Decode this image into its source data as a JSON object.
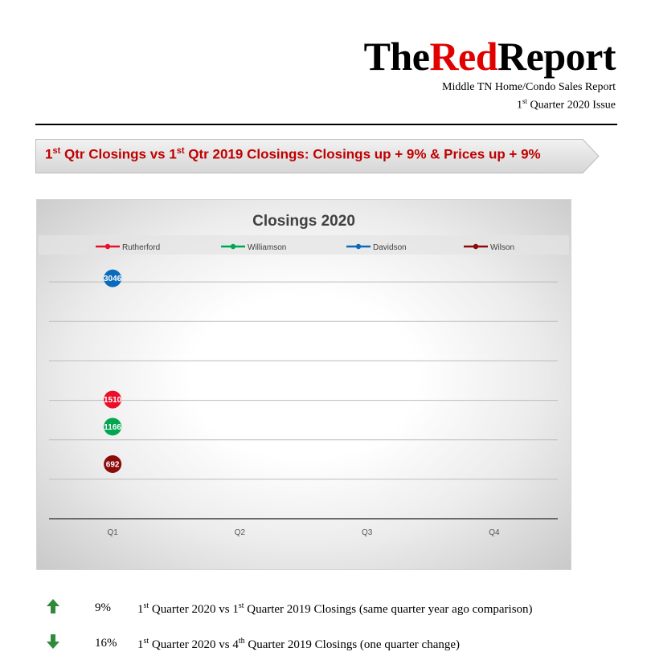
{
  "header": {
    "logo_the": "The",
    "logo_red": "Red",
    "logo_report": "Report",
    "subtitle": "Middle TN Home/Condo Sales Report",
    "issue_pre": "1",
    "issue_sup": "st",
    "issue_post": " Quarter 2020 Issue"
  },
  "banner": {
    "p1": "1",
    "s1": "st",
    "p2": " Qtr Closings vs 1",
    "s2": "st",
    "p3": " Qtr 2019 Closings: Closings up + 9% & Prices up + 9%"
  },
  "chart_data": {
    "type": "line",
    "title": "Closings 2020",
    "categories": [
      "Q1",
      "Q2",
      "Q3",
      "Q4"
    ],
    "series": [
      {
        "name": "Rutherford",
        "color": "#e8102a",
        "values": [
          1510,
          null,
          null,
          null
        ]
      },
      {
        "name": "Williamson",
        "color": "#00a651",
        "values": [
          1166,
          null,
          null,
          null
        ]
      },
      {
        "name": "Davidson",
        "color": "#0a6bbd",
        "values": [
          3046,
          null,
          null,
          null
        ]
      },
      {
        "name": "Wilson",
        "color": "#8b0a0a",
        "values": [
          692,
          null,
          null,
          null
        ]
      }
    ],
    "ylim": [
      0,
      3500
    ],
    "grid": true,
    "legend": "top"
  },
  "stats": [
    {
      "direction": "up",
      "color": "#2e8b3a",
      "pct": "9%",
      "a": "1",
      "as": "st",
      "b": " Quarter 2020 vs 1",
      "bs": "st",
      "c": " Quarter 2019 Closings (same quarter year ago comparison)"
    },
    {
      "direction": "down",
      "color": "#2e8b3a",
      "pct": "16%",
      "a": "1",
      "as": "st",
      "b": " Quarter 2020 vs 4",
      "bs": "th",
      "c": " Quarter 2019 Closings (one quarter change)"
    }
  ]
}
